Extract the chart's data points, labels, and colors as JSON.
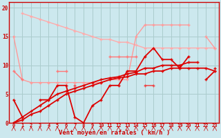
{
  "title": "",
  "xlabel": "Vent moyen/en rafales ( km/h )",
  "ylabel": "",
  "background_color": "#cce8ee",
  "grid_color": "#aacccc",
  "x_values": [
    0,
    1,
    2,
    3,
    4,
    5,
    6,
    7,
    8,
    9,
    10,
    11,
    12,
    13,
    14,
    15,
    16,
    17,
    18,
    19,
    20,
    21,
    22,
    23
  ],
  "lines": [
    {
      "color": "#ffaaaa",
      "linewidth": 1.0,
      "markersize": 2.5,
      "y": [
        null,
        19,
        18.5,
        18,
        17.5,
        17,
        16.5,
        16,
        15.5,
        15,
        14.5,
        14.5,
        14,
        14,
        13.5,
        13,
        13,
        13,
        13,
        13,
        13,
        13,
        13,
        13
      ]
    },
    {
      "color": "#ff9999",
      "linewidth": 1.0,
      "markersize": 2.5,
      "y": [
        15,
        7.5,
        7,
        7,
        7,
        7,
        7,
        7,
        7,
        7,
        7,
        7.5,
        7.5,
        7.5,
        15,
        17,
        17,
        17,
        17,
        17,
        17,
        null,
        15,
        13
      ]
    },
    {
      "color": "#ff7777",
      "linewidth": 1.0,
      "markersize": 2.5,
      "y": [
        9,
        7.5,
        null,
        null,
        null,
        9,
        9,
        null,
        null,
        null,
        null,
        11.5,
        11.5,
        11.5,
        11.5,
        null,
        null,
        null,
        null,
        null,
        null,
        null,
        null,
        null
      ]
    },
    {
      "comment": "dark red jagged line: 4,1,null,4,4,6.5,6.5 then drops 1,0,3,4,6.5,6.5,9,9,11.5,13,11,11,9.5,11.5,null,7.5,9",
      "color": "#dd0000",
      "linewidth": 1.3,
      "markersize": 2.8,
      "y": [
        4,
        1,
        null,
        4,
        4,
        6.5,
        6.5,
        1,
        0,
        3,
        4,
        6.5,
        6.5,
        9,
        9,
        11.5,
        13,
        11,
        11,
        9.5,
        11.5,
        null,
        7.5,
        9
      ]
    },
    {
      "color": "#dd0000",
      "linewidth": 1.3,
      "markersize": 2.5,
      "y": [
        0,
        0.5,
        1.5,
        2,
        3,
        4,
        5,
        5.5,
        6,
        6.5,
        7,
        7.5,
        7.8,
        8,
        8.5,
        8.5,
        9,
        9,
        9.5,
        9.5,
        9.5,
        9.5,
        9.5,
        9.0
      ]
    },
    {
      "color": "#dd0000",
      "linewidth": 1.3,
      "markersize": 2.5,
      "y": [
        0,
        1,
        2,
        3,
        4,
        5,
        5.5,
        6,
        6.5,
        7,
        7.5,
        7.8,
        8,
        8.5,
        8.8,
        9.5,
        9.5,
        10,
        10,
        10,
        10.5,
        10.5,
        null,
        9.5
      ]
    },
    {
      "color": "#ee4444",
      "linewidth": 1.1,
      "markersize": 2.5,
      "y": [
        null,
        null,
        null,
        null,
        null,
        null,
        null,
        6.5,
        null,
        null,
        null,
        null,
        null,
        null,
        null,
        6.5,
        6.5,
        null,
        null,
        null,
        null,
        null,
        null,
        null
      ]
    }
  ],
  "ylim": [
    0,
    21
  ],
  "xlim": [
    -0.5,
    23.5
  ],
  "yticks": [
    0,
    5,
    10,
    15,
    20
  ],
  "xticks": [
    0,
    1,
    2,
    3,
    4,
    5,
    6,
    7,
    8,
    9,
    10,
    11,
    12,
    13,
    14,
    15,
    16,
    17,
    18,
    19,
    20,
    21,
    22,
    23
  ]
}
